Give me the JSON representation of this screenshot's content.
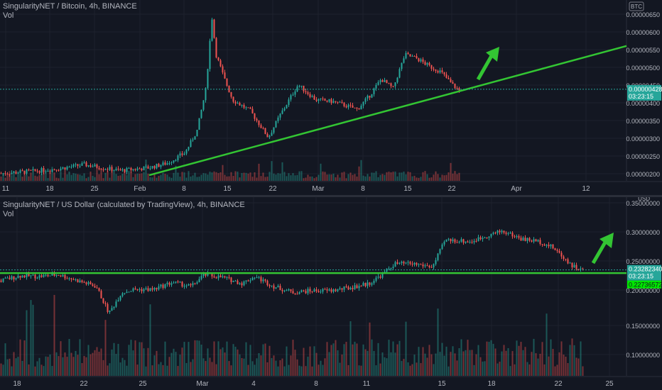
{
  "chart_data": [
    {
      "type": "candlestick",
      "title": "SingularityNET / Bitcoin, 4h, BINANCE",
      "volume_label": "Vol",
      "currency": "BTC",
      "y_ticks": [
        "0.00000650",
        "0.00000600",
        "0.00000550",
        "0.00000500",
        "0.00000450",
        "0.00000400",
        "0.00000350",
        "0.00000300",
        "0.00000250",
        "0.00000200"
      ],
      "x_ticks": [
        "11",
        "18",
        "25",
        "Feb",
        "8",
        "15",
        "22",
        "Mar",
        "8",
        "15",
        "22",
        "Apr",
        "12"
      ],
      "ylim": [
        1.85e-06,
        6.65e-06
      ],
      "last_price": "0.00000428",
      "countdown": "03:23:15",
      "grid": true,
      "trendline": {
        "start": [
          "Feb",
          2e-06
        ],
        "end": [
          "Apr 12+",
          5.43e-06
        ],
        "color": "#33c533"
      },
      "arrow": {
        "direction": "up",
        "color": "#33c533"
      },
      "price_path": [
        [
          0,
          2.05e-06
        ],
        [
          0.05,
          2.1e-06
        ],
        [
          0.1,
          2.18e-06
        ],
        [
          0.14,
          2.28e-06
        ],
        [
          0.2,
          2.12e-06
        ],
        [
          0.25,
          2.2e-06
        ],
        [
          0.28,
          2.32e-06
        ],
        [
          0.31,
          2.6e-06
        ],
        [
          0.33,
          3.18e-06
        ],
        [
          0.345,
          4.3e-06
        ],
        [
          0.355,
          6.2e-06
        ],
        [
          0.362,
          5.2e-06
        ],
        [
          0.375,
          4.6e-06
        ],
        [
          0.39,
          4e-06
        ],
        [
          0.42,
          3.7e-06
        ],
        [
          0.45,
          3e-06
        ],
        [
          0.47,
          3.6e-06
        ],
        [
          0.5,
          4.4e-06
        ],
        [
          0.53,
          4e-06
        ],
        [
          0.56,
          3.95e-06
        ],
        [
          0.6,
          3.75e-06
        ],
        [
          0.62,
          4.1e-06
        ],
        [
          0.64,
          4.55e-06
        ],
        [
          0.66,
          4.3e-06
        ],
        [
          0.68,
          5.2e-06
        ],
        [
          0.7,
          5.1e-06
        ],
        [
          0.72,
          4.9e-06
        ],
        [
          0.74,
          4.75e-06
        ],
        [
          0.76,
          4.4e-06
        ],
        [
          0.775,
          4.2e-06
        ]
      ]
    },
    {
      "type": "candlestick",
      "title": "SingularityNET / US Dollar (calculated by TradingView), 4h, BINANCE",
      "volume_label": "Vol",
      "currency": "USD",
      "y_ticks": [
        "0.35000000",
        "0.30000000",
        "0.25000000",
        "0.20000000",
        "0.15000000",
        "0.10000000"
      ],
      "x_ticks": [
        "18",
        "22",
        "25",
        "Mar",
        "4",
        "8",
        "11",
        "15",
        "18",
        "22",
        "25"
      ],
      "ylim": [
        0.055,
        0.355
      ],
      "last_price": "0.23282340",
      "countdown": "03:23:15",
      "green_label": "0.22736572",
      "grid": true,
      "horizontal_line": {
        "value": 0.2274,
        "color": "#33c533"
      },
      "arrow": {
        "direction": "up",
        "color": "#33c533"
      },
      "price_path": [
        [
          0,
          0.215
        ],
        [
          0.03,
          0.223
        ],
        [
          0.06,
          0.222
        ],
        [
          0.09,
          0.225
        ],
        [
          0.12,
          0.215
        ],
        [
          0.15,
          0.205
        ],
        [
          0.17,
          0.16
        ],
        [
          0.19,
          0.195
        ],
        [
          0.21,
          0.2
        ],
        [
          0.24,
          0.2
        ],
        [
          0.27,
          0.212
        ],
        [
          0.3,
          0.205
        ],
        [
          0.32,
          0.225
        ],
        [
          0.35,
          0.22
        ],
        [
          0.38,
          0.21
        ],
        [
          0.4,
          0.222
        ],
        [
          0.43,
          0.205
        ],
        [
          0.46,
          0.195
        ],
        [
          0.49,
          0.198
        ],
        [
          0.52,
          0.198
        ],
        [
          0.55,
          0.203
        ],
        [
          0.58,
          0.21
        ],
        [
          0.6,
          0.225
        ],
        [
          0.62,
          0.243
        ],
        [
          0.65,
          0.243
        ],
        [
          0.68,
          0.238
        ],
        [
          0.7,
          0.283
        ],
        [
          0.72,
          0.282
        ],
        [
          0.74,
          0.28
        ],
        [
          0.77,
          0.292
        ],
        [
          0.79,
          0.298
        ],
        [
          0.82,
          0.285
        ],
        [
          0.85,
          0.28
        ],
        [
          0.87,
          0.27
        ],
        [
          0.9,
          0.24
        ],
        [
          0.92,
          0.23
        ]
      ]
    }
  ]
}
